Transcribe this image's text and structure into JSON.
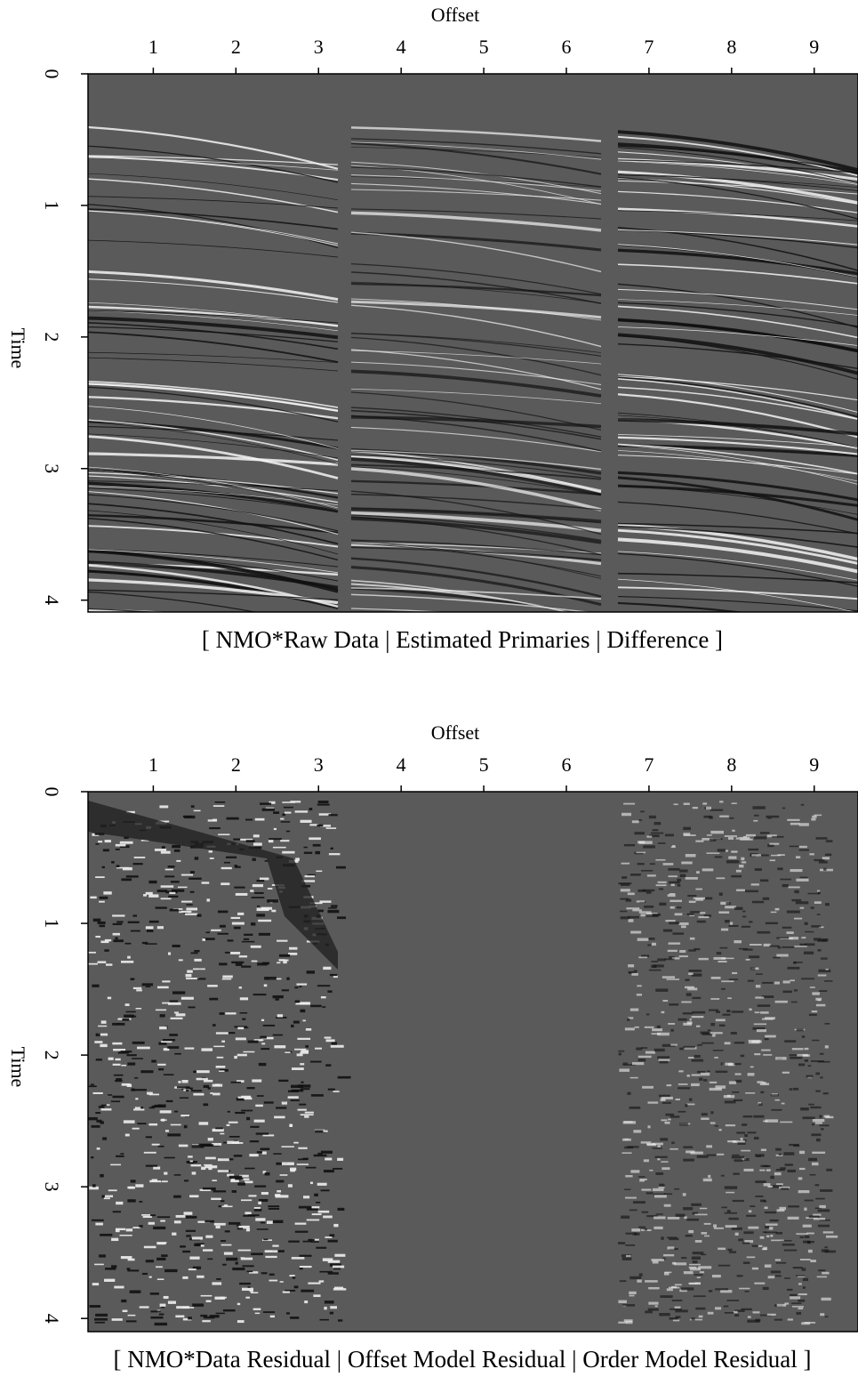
{
  "chart_data": [
    {
      "type": "image",
      "xlabel": "Offset",
      "ylabel": "Time",
      "caption": "[ NMO*Raw Data | Estimated Primaries | Difference ]",
      "xlim": [
        0.21,
        9.53
      ],
      "ylim": [
        0,
        4.09
      ],
      "xticks": [
        1,
        2,
        3,
        4,
        5,
        6,
        7,
        8,
        9
      ],
      "yticks": [
        0,
        1,
        2,
        3,
        4
      ]
    },
    {
      "type": "image",
      "xlabel": "Offset",
      "ylabel": "Time",
      "caption": "[ NMO*Data Residual | Offset Model Residual | Order Model Residual ]",
      "xlim": [
        0.21,
        9.53
      ],
      "ylim": [
        0,
        4.1
      ],
      "xticks": [
        1,
        2,
        3,
        4,
        5,
        6,
        7,
        8,
        9
      ],
      "yticks": [
        0,
        1,
        2,
        3,
        4
      ]
    }
  ]
}
